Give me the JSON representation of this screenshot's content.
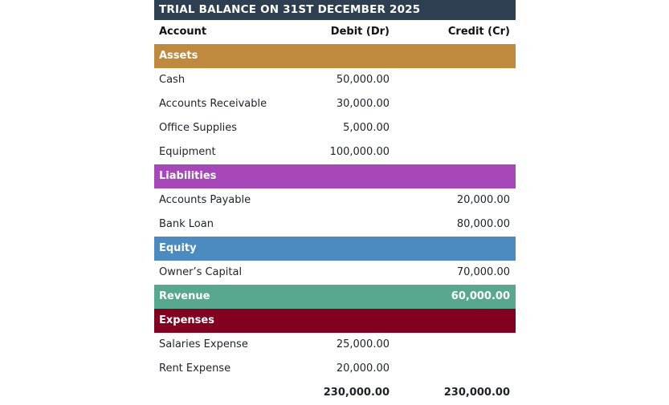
{
  "title": "TRIAL BALANCE ON 31ST DECEMBER 2025",
  "columns": {
    "account": "Account",
    "debit": "Debit (Dr)",
    "credit": "Credit (Cr)"
  },
  "sections": [
    {
      "name": "Assets",
      "color": "#c08a3e",
      "credit": "",
      "rows": [
        {
          "account": "Cash",
          "debit": "50,000.00",
          "credit": ""
        },
        {
          "account": "Accounts Receivable",
          "debit": "30,000.00",
          "credit": ""
        },
        {
          "account": "Office Supplies",
          "debit": "5,000.00",
          "credit": ""
        },
        {
          "account": "Equipment",
          "debit": "100,000.00",
          "credit": ""
        }
      ]
    },
    {
      "name": "Liabilities",
      "color": "#a648b8",
      "credit": "",
      "rows": [
        {
          "account": "Accounts Payable",
          "debit": "",
          "credit": "20,000.00"
        },
        {
          "account": "Bank Loan",
          "debit": "",
          "credit": "80,000.00"
        }
      ]
    },
    {
      "name": "Equity",
      "color": "#4b8bbf",
      "credit": "",
      "rows": [
        {
          "account": "Owner’s Capital",
          "debit": "",
          "credit": "70,000.00"
        }
      ]
    },
    {
      "name": "Revenue",
      "color": "#58a78f",
      "credit": "60,000.00",
      "rows": []
    },
    {
      "name": "Expenses",
      "color": "#820020",
      "credit": "",
      "rows": [
        {
          "account": "Salaries Expense",
          "debit": "25,000.00",
          "credit": ""
        },
        {
          "account": "Rent Expense",
          "debit": "20,000.00",
          "credit": ""
        }
      ]
    }
  ],
  "totals": {
    "debit": "230,000.00",
    "credit": "230,000.00"
  }
}
